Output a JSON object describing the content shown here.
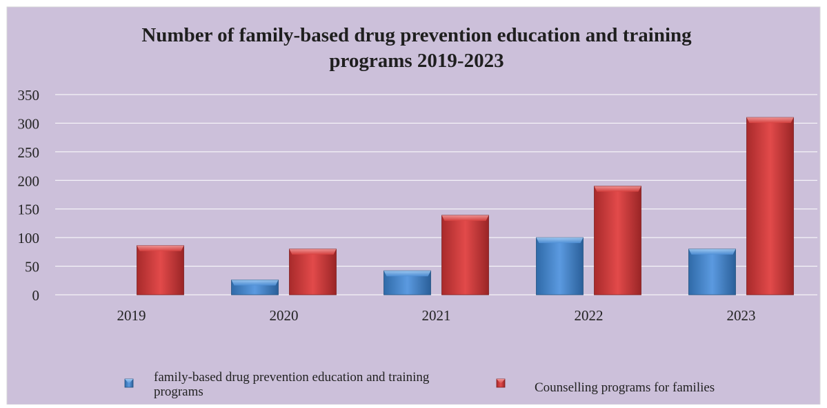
{
  "chart_data": {
    "type": "bar",
    "title": "Number of family-based drug prevention education and training programs 2019-2023",
    "title_lines": [
      "Number of family-based drug prevention education and training",
      "programs 2019-2023"
    ],
    "xlabel": "",
    "ylabel": "",
    "categories": [
      "2019",
      "2020",
      "2021",
      "2022",
      "2023"
    ],
    "ylim": [
      0,
      350
    ],
    "yticks": [
      "0",
      "50",
      "100",
      "150",
      "200",
      "250",
      "300",
      "350"
    ],
    "grid": true,
    "legend_position": "bottom",
    "background_color": "#ccc0da",
    "series": [
      {
        "name": "family-based drug prevention education and training programs",
        "legend_lines": [
          "family-based drug prevention education and training",
          "programs"
        ],
        "color": "#4a86c8",
        "values": [
          0,
          26,
          42,
          100,
          80
        ]
      },
      {
        "name": "Counselling programs for families",
        "legend_lines": [
          "Counselling programs for families"
        ],
        "color": "#c9393a",
        "values": [
          86,
          80,
          139,
          190,
          310
        ]
      }
    ]
  }
}
